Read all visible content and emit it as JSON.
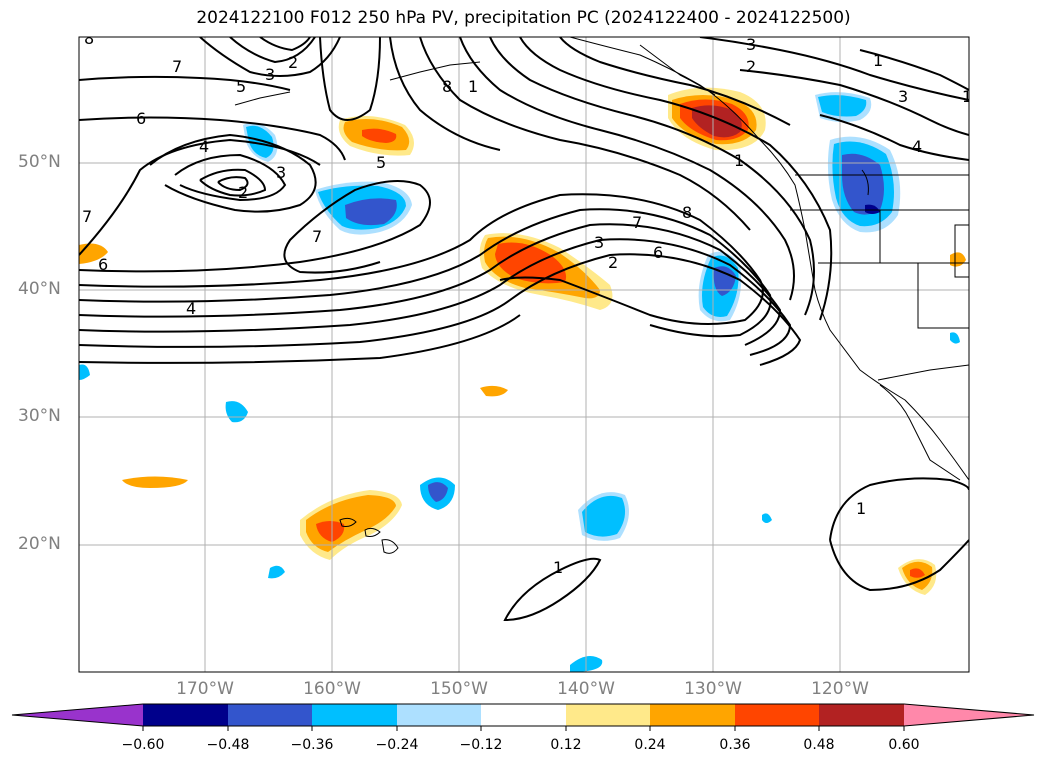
{
  "title": "2024122100 F012 250 hPa PV, precipitation PC (2024122400 - 2024122500)",
  "map": {
    "region": "North-East Pacific Ocean",
    "lat_ticks": [
      "50°N",
      "40°N",
      "30°N",
      "20°N"
    ],
    "lon_ticks": [
      "170°W",
      "160°W",
      "150°W",
      "140°W",
      "130°W",
      "120°W"
    ],
    "pv_contour_labels": [
      "8",
      "7",
      "2",
      "3",
      "5",
      "8",
      "1",
      "3",
      "2",
      "1",
      "3",
      "6",
      "4",
      "3",
      "2",
      "5",
      "7",
      "6",
      "4",
      "7",
      "8",
      "3",
      "2",
      "6",
      "1",
      "1",
      "4",
      "1",
      "1",
      "7"
    ]
  },
  "colorbar": {
    "tick_labels": [
      "−0.60",
      "−0.48",
      "−0.36",
      "−0.24",
      "−0.12",
      "0.12",
      "0.24",
      "0.36",
      "0.48",
      "0.60"
    ],
    "colors": [
      "#9933cc",
      "#00008b",
      "#3355cc",
      "#00bfff",
      "#ade0ff",
      "#ffffff",
      "#ffe98a",
      "#ffa500",
      "#ff4500",
      "#b22222",
      "#ff88aa"
    ]
  }
}
